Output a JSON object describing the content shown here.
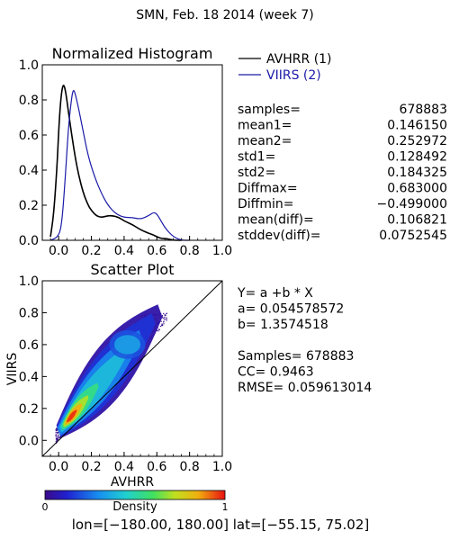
{
  "page_title": "SMN,  Feb. 18 2014 (week 7)",
  "colors": {
    "series1": "#000000",
    "series2": "#1a1aa8",
    "axes": "#000000"
  },
  "chart_data": [
    {
      "type": "line",
      "title": "Normalized Histogram",
      "xlabel": "",
      "ylabel": "",
      "xlim": [
        -0.1,
        1.0
      ],
      "ylim": [
        0.0,
        1.0
      ],
      "xticks": [
        "0.0",
        "0.2",
        "0.4",
        "0.6",
        "0.8",
        "1.0"
      ],
      "yticks": [
        "0.0",
        "0.2",
        "0.4",
        "0.6",
        "0.8",
        "1.0"
      ],
      "legend": {
        "placement": "right-of-plot",
        "entries": [
          "AVHRR (1)",
          "VIIRS (2)"
        ]
      },
      "series": [
        {
          "name": "AVHRR (1)",
          "color": "#000000",
          "x": [
            -0.05,
            -0.03,
            -0.01,
            0.0,
            0.01,
            0.02,
            0.03,
            0.04,
            0.05,
            0.06,
            0.08,
            0.1,
            0.12,
            0.15,
            0.18,
            0.2,
            0.23,
            0.26,
            0.3,
            0.33,
            0.37,
            0.4,
            0.45,
            0.5,
            0.55,
            0.58,
            0.6,
            0.63,
            0.66,
            0.7,
            0.75
          ],
          "values": [
            0.02,
            0.15,
            0.42,
            0.62,
            0.77,
            0.86,
            0.89,
            0.86,
            0.8,
            0.73,
            0.6,
            0.48,
            0.38,
            0.27,
            0.2,
            0.17,
            0.14,
            0.13,
            0.14,
            0.14,
            0.13,
            0.11,
            0.09,
            0.06,
            0.04,
            0.03,
            0.02,
            0.01,
            0.01,
            0.0,
            0.0
          ]
        },
        {
          "name": "VIIRS (2)",
          "color": "#1a1aa8",
          "x": [
            -0.05,
            0.0,
            0.02,
            0.04,
            0.06,
            0.08,
            0.09,
            0.1,
            0.12,
            0.15,
            0.18,
            0.22,
            0.26,
            0.3,
            0.35,
            0.4,
            0.45,
            0.5,
            0.55,
            0.58,
            0.6,
            0.62,
            0.65,
            0.7,
            0.75,
            0.8
          ],
          "values": [
            0.0,
            0.02,
            0.1,
            0.35,
            0.65,
            0.82,
            0.86,
            0.84,
            0.76,
            0.62,
            0.48,
            0.36,
            0.27,
            0.2,
            0.15,
            0.13,
            0.13,
            0.12,
            0.14,
            0.16,
            0.15,
            0.12,
            0.07,
            0.02,
            0.0,
            0.0
          ]
        }
      ]
    },
    {
      "type": "scatter",
      "title": "Scatter Plot",
      "xlabel": "AVHRR",
      "ylabel": "VIIRS",
      "xlim": [
        -0.1,
        1.0
      ],
      "ylim": [
        -0.1,
        1.0
      ],
      "xticks": [
        "0.0",
        "0.2",
        "0.4",
        "0.6",
        "0.8",
        "1.0"
      ],
      "yticks": [
        "0.0",
        "0.2",
        "0.4",
        "0.6",
        "0.8",
        "1.0"
      ],
      "reference_line": "y = x",
      "point_cloud": {
        "samples": 678883,
        "fit": {
          "a": 0.054578572,
          "b": 1.3574518
        },
        "x_range": [
          0.0,
          0.65
        ],
        "density_peak": [
          0.08,
          0.13
        ]
      },
      "colorbar": {
        "label": "Density",
        "min_label": "0",
        "max_label": "1"
      }
    }
  ],
  "stats": {
    "rows": [
      {
        "label": "samples=",
        "value": "678883"
      },
      {
        "label": "mean1=",
        "value": "0.146150"
      },
      {
        "label": "mean2=",
        "value": "0.252972"
      },
      {
        "label": "std1=",
        "value": "0.128492"
      },
      {
        "label": "std2=",
        "value": "0.184325"
      },
      {
        "label": "Diffmax=",
        "value": "0.683000"
      },
      {
        "label": "Diffmin=",
        "value": "−0.499000"
      },
      {
        "label": "mean(diff)=",
        "value": "0.106821"
      },
      {
        "label": "stddev(diff)=",
        "value": "0.0752545"
      }
    ]
  },
  "regression": {
    "lines": [
      "Y= a +b * X",
      "a= 0.054578572",
      "b= 1.3574518",
      "",
      "Samples= 678883",
      "CC=  0.9463",
      "RMSE= 0.059613014"
    ]
  },
  "footer": "lon=[−180.00, 180.00] lat=[−55.15, 75.02]"
}
